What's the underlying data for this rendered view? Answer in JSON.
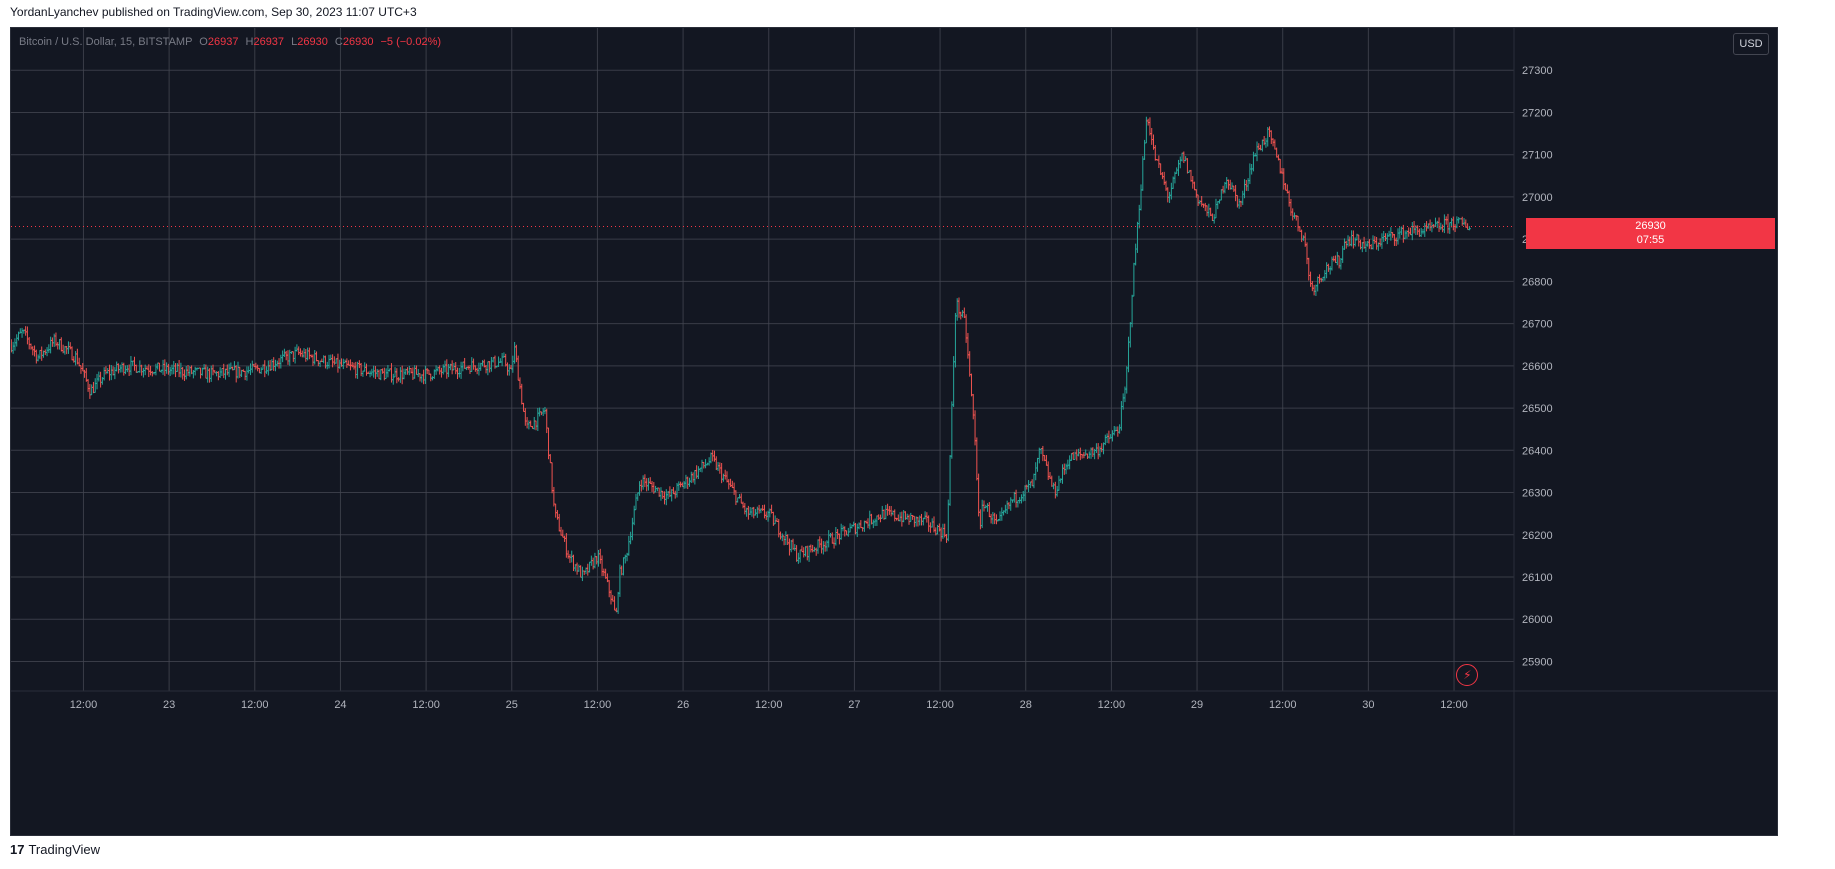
{
  "header": {
    "published": "YordanLyanchev published on TradingView.com, Sep 30, 2023 11:07 UTC+3"
  },
  "legend": {
    "symbol": "Bitcoin / U.S. Dollar, 15, BITSTAMP",
    "o_label": "O",
    "o": "26937",
    "h_label": "H",
    "h": "26937",
    "l_label": "L",
    "l": "26930",
    "c_label": "C",
    "c": "26930",
    "change": "−5 (−0.02%)"
  },
  "currency_button": "USD",
  "price_tag": {
    "price": "26930",
    "countdown": "07:55"
  },
  "footer": {
    "logo": "17",
    "brand": "TradingView"
  },
  "colors": {
    "background": "#131722",
    "up": "#26a69a",
    "down": "#ef5350",
    "grid": "#434651",
    "text": "#b2b5be",
    "tag": "#f23645"
  },
  "icons": {
    "alert": "lightning-alert-icon",
    "logo": "tradingview-logo-icon"
  },
  "chart_data": {
    "type": "ohlc",
    "timeframe": "15",
    "y_ticks": [
      25900,
      26000,
      26100,
      26200,
      26300,
      26400,
      26500,
      26600,
      26700,
      26800,
      26900,
      27000,
      27100,
      27200,
      27300
    ],
    "y_range": [
      25830,
      27400
    ],
    "x_ticks": [
      "12:00",
      "23",
      "12:00",
      "24",
      "12:00",
      "25",
      "12:00",
      "26",
      "12:00",
      "27",
      "12:00",
      "28",
      "12:00",
      "29",
      "12:00",
      "30",
      "12:00"
    ],
    "x_tick_hours": [
      12,
      24,
      36,
      48,
      60,
      72,
      84,
      96,
      108,
      120,
      132,
      144,
      156,
      168,
      180,
      192,
      204
    ],
    "x_range_hours": [
      1.85,
      212.4
    ],
    "last_price": 26930,
    "path_hours": [
      1.9,
      3.5,
      5.6,
      8,
      11,
      13,
      15,
      18,
      24,
      30,
      36,
      42,
      48,
      54,
      60,
      66,
      71,
      72,
      72.3,
      74,
      76,
      76.6,
      78,
      80,
      82,
      84,
      86,
      86.6,
      87,
      88,
      90,
      94,
      100,
      105,
      108,
      112,
      118,
      124,
      130,
      133,
      134.2,
      135.5,
      136.8,
      137.6,
      138,
      140,
      142,
      145,
      146,
      147,
      148,
      150,
      154,
      157,
      158,
      159,
      160,
      161,
      162,
      163,
      164,
      165,
      166,
      168,
      170,
      171,
      172,
      174,
      176,
      178,
      180,
      181,
      183,
      184,
      186,
      188,
      188.8,
      190,
      192,
      194,
      196,
      198,
      200,
      202,
      204,
      206.3
    ],
    "path_close": [
      26650,
      26680,
      26620,
      26660,
      26620,
      26540,
      26580,
      26600,
      26590,
      26580,
      26590,
      26630,
      26600,
      26580,
      26580,
      26600,
      26610,
      26580,
      26650,
      26450,
      26480,
      26500,
      26250,
      26150,
      26100,
      26150,
      26050,
      26000,
      26100,
      26150,
      26330,
      26290,
      26380,
      26250,
      26250,
      26150,
      26200,
      26250,
      26230,
      26200,
      26750,
      26700,
      26450,
      26200,
      26280,
      26220,
      26280,
      26320,
      26400,
      26350,
      26300,
      26380,
      26400,
      26450,
      26550,
      26800,
      27000,
      27200,
      27100,
      27050,
      27000,
      27050,
      27100,
      27000,
      26950,
      26980,
      27050,
      26980,
      27100,
      27150,
      27050,
      26980,
      26900,
      26780,
      26830,
      26850,
      26900,
      26900,
      26880,
      26900,
      26910,
      26920,
      26920,
      26930,
      26940,
      26930
    ]
  }
}
